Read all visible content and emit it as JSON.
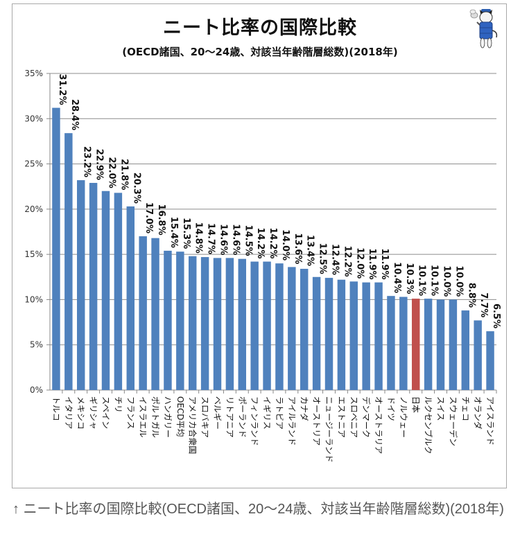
{
  "caption": "↑ ニート比率の国際比較(OECD諸国、20〜24歳、対該当年齢階層総数)(2018年)",
  "mascot_icon": "cat-mascot-icon",
  "colors": {
    "bar": "#4f81bd",
    "highlight": "#c0504d",
    "grid": "#8c8c8c"
  },
  "chart_data": {
    "type": "bar",
    "title": "ニート比率の国際比較",
    "subtitle": "(OECD諸国、20〜24歳、対該当年齢階層総数)(2018年)",
    "xlabel": "",
    "ylabel": "",
    "ylim": [
      0,
      35
    ],
    "yticks": [
      0,
      5,
      10,
      15,
      20,
      25,
      30,
      35
    ],
    "ytick_labels": [
      "0%",
      "5%",
      "10%",
      "15%",
      "20%",
      "25%",
      "30%",
      "35%"
    ],
    "grid": true,
    "legend": "none",
    "highlight_category": "日本",
    "categories": [
      "トルコ",
      "イタリア",
      "メキシコ",
      "ギリシャ",
      "スペイン",
      "チリ",
      "フランス",
      "イスラエル",
      "ポルトガル",
      "ハンガリー",
      "OECD平均",
      "アメリカ合衆国",
      "スロバキア",
      "ベルギー",
      "リトアニア",
      "ポーランド",
      "フィンランド",
      "イギリス",
      "ラトビア",
      "アイルランド",
      "カナダ",
      "オーストリア",
      "ニュージーランド",
      "エストニア",
      "スロベニア",
      "デンマーク",
      "オーストラリア",
      "ドイツ",
      "ノルウェー",
      "日本",
      "ルクセンブルク",
      "スイス",
      "スウェーデン",
      "チェコ",
      "オランダ",
      "アイスランド"
    ],
    "values": [
      31.2,
      28.4,
      23.2,
      22.9,
      22.0,
      21.8,
      20.3,
      17.0,
      16.8,
      15.4,
      15.3,
      14.8,
      14.7,
      14.6,
      14.6,
      14.5,
      14.2,
      14.2,
      14.0,
      13.6,
      13.4,
      12.5,
      12.4,
      12.2,
      12.0,
      11.9,
      11.9,
      10.4,
      10.3,
      10.1,
      10.1,
      10.0,
      10.0,
      8.8,
      7.7,
      6.5
    ],
    "data_labels": [
      "31.2%",
      "28.4%",
      "23.2%",
      "22.9%",
      "22.0%",
      "21.8%",
      "20.3%",
      "17.0%",
      "16.8%",
      "15.4%",
      "15.3%",
      "14.8%",
      "14.7%",
      "14.6%",
      "14.6%",
      "14.5%",
      "14.2%",
      "14.2%",
      "14.0%",
      "13.6%",
      "13.4%",
      "12.5%",
      "12.4%",
      "12.2%",
      "12.0%",
      "11.9%",
      "11.9%",
      "10.4%",
      "10.3%",
      "10.1%",
      "10.1%",
      "10.0%",
      "10.0%",
      "8.8%",
      "7.7%",
      "6.5%"
    ]
  }
}
